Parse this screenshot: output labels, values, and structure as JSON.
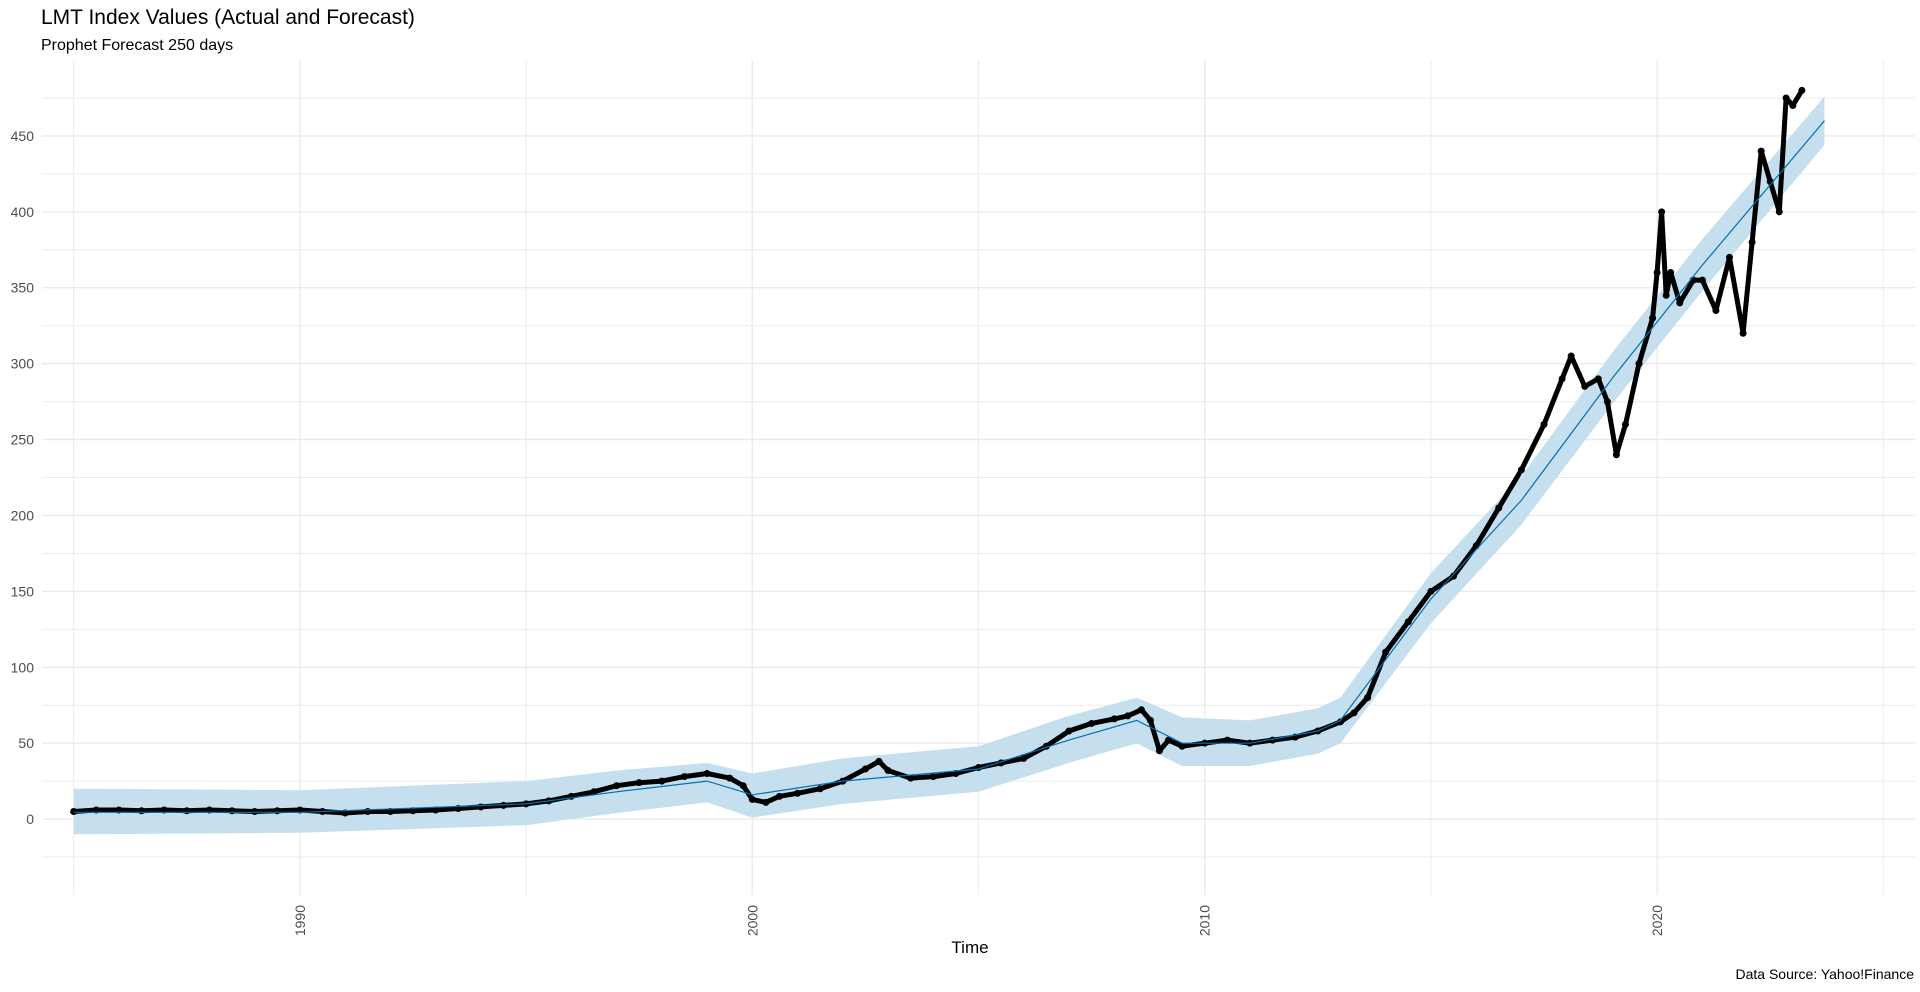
{
  "chart_data": {
    "type": "line",
    "title": "LMT Index Values (Actual and Forecast)",
    "subtitle": "Prophet Forecast 250 days",
    "xlabel": "Time",
    "ylabel": "",
    "caption": "Data Source: Yahoo!Finance",
    "xlim": [
      1984.3,
      2025.7
    ],
    "ylim": [
      -50,
      500
    ],
    "x_ticks": [
      1990,
      2000,
      2010,
      2020
    ],
    "y_ticks": [
      0,
      50,
      100,
      150,
      200,
      250,
      300,
      350,
      400,
      450
    ],
    "grid": true,
    "colors": {
      "actual": "#000000",
      "forecast": "#0072B2",
      "interval": "#c6dfee",
      "grid": "#ebebeb"
    },
    "series": [
      {
        "name": "actual",
        "kind": "points",
        "x": [
          1985.0,
          1985.5,
          1986.0,
          1986.5,
          1987.0,
          1987.5,
          1988.0,
          1988.5,
          1989.0,
          1989.5,
          1990.0,
          1990.5,
          1991.0,
          1991.5,
          1992.0,
          1992.5,
          1993.0,
          1993.5,
          1994.0,
          1994.5,
          1995.0,
          1995.5,
          1996.0,
          1996.5,
          1997.0,
          1997.5,
          1998.0,
          1998.5,
          1999.0,
          1999.5,
          1999.8,
          2000.0,
          2000.3,
          2000.6,
          2001.0,
          2001.5,
          2002.0,
          2002.5,
          2002.8,
          2003.0,
          2003.5,
          2004.0,
          2004.5,
          2005.0,
          2005.5,
          2006.0,
          2006.5,
          2007.0,
          2007.5,
          2008.0,
          2008.3,
          2008.6,
          2008.8,
          2009.0,
          2009.2,
          2009.5,
          2010.0,
          2010.5,
          2011.0,
          2011.5,
          2012.0,
          2012.5,
          2013.0,
          2013.3,
          2013.6,
          2014.0,
          2014.5,
          2015.0,
          2015.5,
          2016.0,
          2016.5,
          2017.0,
          2017.5,
          2017.9,
          2018.1,
          2018.4,
          2018.7,
          2018.9,
          2019.1,
          2019.3,
          2019.6,
          2019.9,
          2020.0,
          2020.1,
          2020.2,
          2020.3,
          2020.5,
          2020.8,
          2021.0,
          2021.3,
          2021.6,
          2021.9,
          2022.1,
          2022.3,
          2022.5,
          2022.7,
          2022.85,
          2023.0,
          2023.2
        ],
        "y": [
          5,
          6,
          6,
          5.5,
          6,
          5.5,
          6,
          5.5,
          5,
          5.5,
          6,
          5,
          4,
          5,
          5,
          5.5,
          6,
          7,
          8,
          9,
          10,
          12,
          15,
          18,
          22,
          24,
          25,
          28,
          30,
          27,
          22,
          13,
          11,
          15,
          17,
          20,
          25,
          33,
          38,
          32,
          27,
          28,
          30,
          34,
          37,
          40,
          48,
          58,
          63,
          66,
          68,
          72,
          65,
          45,
          52,
          48,
          50,
          52,
          50,
          52,
          54,
          58,
          64,
          70,
          80,
          110,
          130,
          150,
          160,
          180,
          205,
          230,
          260,
          290,
          305,
          285,
          290,
          275,
          240,
          260,
          300,
          330,
          360,
          400,
          345,
          360,
          340,
          355,
          355,
          335,
          370,
          320,
          380,
          440,
          420,
          400,
          475,
          470,
          480
        ]
      },
      {
        "name": "forecast",
        "kind": "line",
        "x": [
          1985,
          1990,
          1995,
          1997,
          1999,
          2000,
          2002,
          2005,
          2007,
          2008.5,
          2009.5,
          2011,
          2012.5,
          2013,
          2015,
          2017,
          2019,
          2021,
          2023.7
        ],
        "y": [
          4.5,
          4.5,
          10,
          18,
          25,
          16,
          25,
          33,
          52,
          65,
          50,
          50,
          58,
          65,
          145,
          210,
          290,
          365,
          460
        ]
      },
      {
        "name": "interval_upper",
        "kind": "band-upper",
        "x": [
          1985,
          1990,
          1995,
          1997,
          1999,
          2000,
          2002,
          2005,
          2007,
          2008.5,
          2009.5,
          2011,
          2012.5,
          2013,
          2015,
          2017,
          2019,
          2021,
          2023.7
        ],
        "y": [
          20,
          19,
          25,
          32,
          37,
          30,
          40,
          48,
          68,
          80,
          67,
          65,
          73,
          80,
          162,
          226,
          307,
          382,
          476
        ]
      },
      {
        "name": "interval_lower",
        "kind": "band-lower",
        "x": [
          1985,
          1990,
          1995,
          1997,
          1999,
          2000,
          2002,
          2005,
          2007,
          2008.5,
          2009.5,
          2011,
          2012.5,
          2013,
          2015,
          2017,
          2019,
          2021,
          2023.7
        ],
        "y": [
          -10,
          -9,
          -4,
          4,
          11,
          1,
          10,
          18,
          37,
          50,
          35,
          35,
          43,
          50,
          129,
          194,
          273,
          348,
          444
        ]
      }
    ]
  }
}
